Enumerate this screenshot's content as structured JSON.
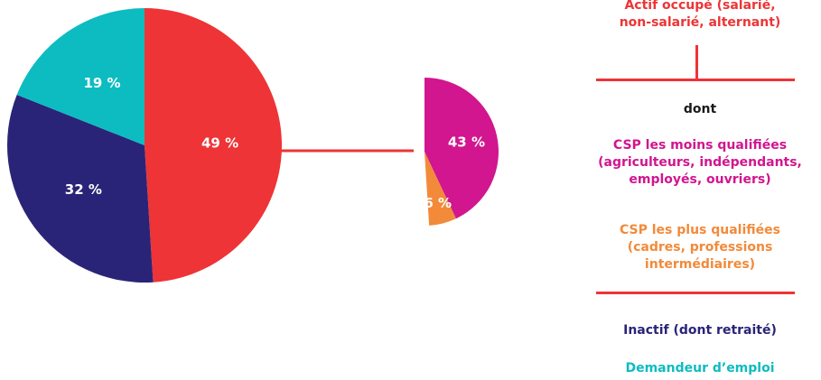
{
  "chart_data": [
    {
      "type": "pie",
      "slices": [
        {
          "key": "actif",
          "value": 49,
          "label": "49 %",
          "color": "#ee3436"
        },
        {
          "key": "inactif",
          "value": 32,
          "label": "32 %",
          "color": "#2a2478"
        },
        {
          "key": "demandeur",
          "value": 19,
          "label": "19 %",
          "color": "#0dbcc0"
        }
      ]
    },
    {
      "type": "pie",
      "note_parent": "actif",
      "slices": [
        {
          "key": "moins",
          "value": 43,
          "label": "43 %",
          "color": "#d1168f"
        },
        {
          "key": "plus",
          "value": 6,
          "label": "6 %",
          "color": "#f28a3a"
        }
      ]
    }
  ],
  "legend": {
    "actif": {
      "text": "Actif occupé (salarié,\nnon-salarié, alternant)",
      "color": "#ee3436"
    },
    "dont": {
      "text": "dont",
      "color": "#1a1a1a"
    },
    "moins": {
      "text": "CSP les moins qualifiées\n(agriculteurs, indépendants,\nemployés, ouvriers)",
      "color": "#d1168f"
    },
    "plus": {
      "text": "CSP les plus qualifiées\n(cadres, professions\nintermédiaires)",
      "color": "#f28a3a"
    },
    "inactif": {
      "text": "Inactif (dont retraité)",
      "color": "#2a2478"
    },
    "demandeur": {
      "text": "Demandeur d’emploi",
      "color": "#0dbcc0"
    }
  },
  "colors": {
    "line": "#ee3436"
  }
}
